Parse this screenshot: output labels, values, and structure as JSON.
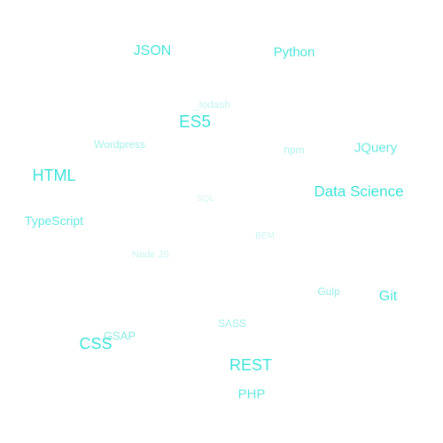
{
  "tag_cloud": {
    "tags": [
      {
        "label": "JSON",
        "color": "#4ee6dc"
      },
      {
        "label": "Python",
        "color": "#4ee6dc"
      },
      {
        "label": "_lodash",
        "color": "#c4f5f1"
      },
      {
        "label": "ES5",
        "color": "#3ee3d9"
      },
      {
        "label": "Wordpress",
        "color": "#a6f0ea"
      },
      {
        "label": "npm",
        "color": "#b0f2ec"
      },
      {
        "label": "JQuery",
        "color": "#6ae9e0"
      },
      {
        "label": "HTML",
        "color": "#3ee3d9"
      },
      {
        "label": "Data Science",
        "color": "#3ee3d9"
      },
      {
        "label": "SQL",
        "color": "#d6f8f5"
      },
      {
        "label": "TypeScript",
        "color": "#6ae9e0"
      },
      {
        "label": "BEM",
        "color": "#d0f7f3"
      },
      {
        "label": "Node JS",
        "color": "#c8f5f1"
      },
      {
        "label": "Gulp",
        "color": "#9aeee7"
      },
      {
        "label": "Git",
        "color": "#4ee6dc"
      },
      {
        "label": "SASS",
        "color": "#a6f0ea"
      },
      {
        "label": "GSAP",
        "color": "#8cece4"
      },
      {
        "label": "CSS",
        "color": "#3ee3d9"
      },
      {
        "label": "REST",
        "color": "#3ee3d9"
      },
      {
        "label": "PHP",
        "color": "#6ae9e0"
      }
    ]
  }
}
